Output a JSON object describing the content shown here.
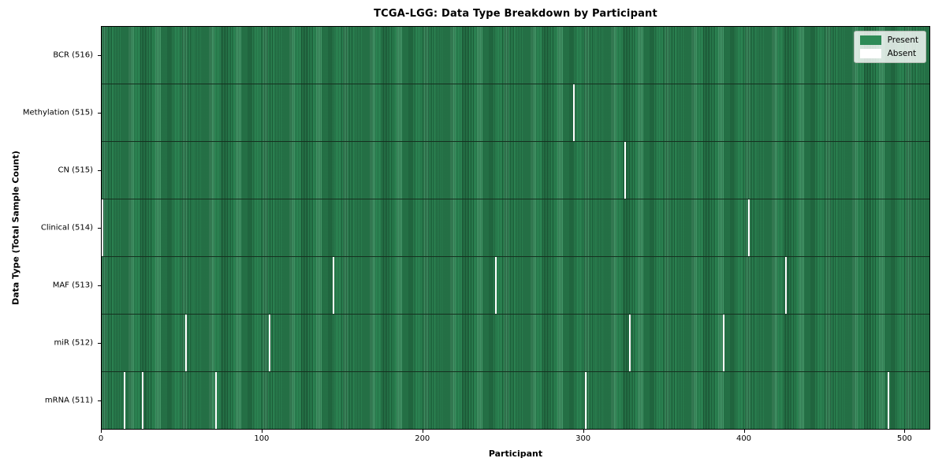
{
  "chart_data": {
    "type": "heatmap",
    "title": "TCGA-LGG: Data Type Breakdown by Participant",
    "xlabel": "Participant",
    "ylabel": "Data Type (Total Sample Count)",
    "x_ticks": [
      0,
      100,
      200,
      300,
      400,
      500
    ],
    "x_range": [
      0,
      516
    ],
    "n_participants": 516,
    "grid": false,
    "legend": {
      "position": "upper right",
      "entries": [
        "Present",
        "Absent"
      ]
    },
    "colors": {
      "present": "#2e8b57",
      "absent": "#ffffff",
      "row_divider": "#15301f"
    },
    "rows": [
      {
        "label": "BCR (516)",
        "data_type": "bcr",
        "present_count": 516,
        "absent_participants": []
      },
      {
        "label": "Methylation (515)",
        "data_type": "methylation",
        "present_count": 515,
        "absent_participants": [
          294
        ]
      },
      {
        "label": "CN (515)",
        "data_type": "cn",
        "present_count": 515,
        "absent_participants": [
          326
        ]
      },
      {
        "label": "Clinical (514)",
        "data_type": "clinical",
        "present_count": 514,
        "absent_participants": [
          0,
          403
        ]
      },
      {
        "label": "MAF (513)",
        "data_type": "maf",
        "present_count": 513,
        "absent_participants": [
          144,
          245,
          426
        ]
      },
      {
        "label": "miR (512)",
        "data_type": "mir",
        "present_count": 512,
        "absent_participants": [
          52,
          104,
          329,
          387
        ]
      },
      {
        "label": "mRNA (511)",
        "data_type": "mrna",
        "present_count": 511,
        "absent_participants": [
          14,
          25,
          71,
          301,
          490
        ]
      }
    ]
  }
}
